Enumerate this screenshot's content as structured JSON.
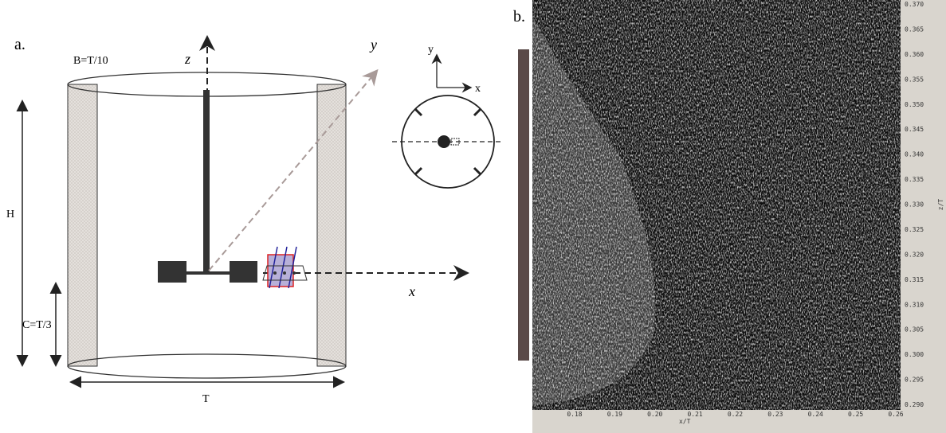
{
  "panel_a": {
    "label": "a.",
    "baffle_label": "B=T/10",
    "z_axis": "z",
    "y_axis": "y",
    "x_axis": "x",
    "height_label": "H",
    "clearance_label": "C=T/3",
    "diameter_label": "T",
    "inset_y": "y",
    "inset_x": "x"
  },
  "panel_b": {
    "label": "b.",
    "x_title": "x/T",
    "y_title": "z/T",
    "x_ticks": [
      "0.18",
      "0.19",
      "0.20",
      "0.21",
      "0.22",
      "0.23",
      "0.24",
      "0.25",
      "0.26"
    ],
    "y_ticks": [
      "0.370",
      "0.365",
      "0.360",
      "0.355",
      "0.350",
      "0.345",
      "0.340",
      "0.335",
      "0.330",
      "0.325",
      "0.320",
      "0.315",
      "0.310",
      "0.305",
      "0.300",
      "0.295",
      "0.290"
    ]
  }
}
